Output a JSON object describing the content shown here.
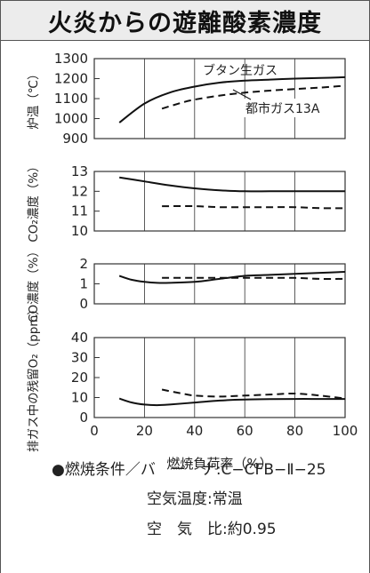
{
  "title": "火炎からの遊離酸素濃度",
  "xaxis": {
    "label": "燃焼負荷率（%）",
    "ticks": [
      0,
      20,
      40,
      60,
      80,
      100
    ],
    "range": [
      0,
      100
    ]
  },
  "chart_data": [
    {
      "type": "line",
      "ylabel": "炉温（℃）",
      "ylim": [
        900,
        1300
      ],
      "yticks": [
        900,
        1000,
        1100,
        1200,
        1300
      ],
      "annotations": [
        "ブタン生ガス",
        "都市ガス13A"
      ],
      "series": [
        {
          "name": "ブタン生ガス",
          "style": "solid",
          "x": [
            10,
            20,
            30,
            40,
            50,
            60,
            70,
            80,
            90,
            100
          ],
          "y": [
            980,
            1075,
            1130,
            1160,
            1180,
            1190,
            1195,
            1200,
            1203,
            1207
          ]
        },
        {
          "name": "都市ガス13A",
          "style": "dashed",
          "x": [
            27,
            35,
            40,
            50,
            60,
            70,
            80,
            90,
            100
          ],
          "y": [
            1050,
            1080,
            1095,
            1115,
            1130,
            1140,
            1148,
            1155,
            1165
          ]
        }
      ]
    },
    {
      "type": "line",
      "ylabel": "CO₂濃度（%）",
      "ylim": [
        10,
        13
      ],
      "yticks": [
        10,
        11,
        12,
        13
      ],
      "series": [
        {
          "name": "ブタン生ガス",
          "style": "solid",
          "x": [
            10,
            20,
            30,
            40,
            50,
            60,
            70,
            80,
            90,
            100
          ],
          "y": [
            12.7,
            12.5,
            12.3,
            12.15,
            12.05,
            12.0,
            12.0,
            12.0,
            12.0,
            12.0
          ]
        },
        {
          "name": "都市ガス13A",
          "style": "dashed",
          "x": [
            27,
            40,
            50,
            60,
            70,
            80,
            90,
            100
          ],
          "y": [
            11.25,
            11.25,
            11.2,
            11.2,
            11.2,
            11.2,
            11.15,
            11.15
          ]
        }
      ]
    },
    {
      "type": "line",
      "ylabel": "CO濃度（%）",
      "ylim": [
        0,
        2
      ],
      "yticks": [
        0,
        1,
        2
      ],
      "series": [
        {
          "name": "ブタン生ガス",
          "style": "solid",
          "x": [
            10,
            15,
            20,
            25,
            30,
            40,
            50,
            60,
            70,
            80,
            90,
            100
          ],
          "y": [
            1.4,
            1.2,
            1.1,
            1.05,
            1.05,
            1.1,
            1.25,
            1.4,
            1.45,
            1.5,
            1.55,
            1.6
          ]
        },
        {
          "name": "都市ガス13A",
          "style": "dashed",
          "x": [
            27,
            40,
            50,
            60,
            70,
            80,
            90,
            100
          ],
          "y": [
            1.3,
            1.3,
            1.3,
            1.3,
            1.3,
            1.3,
            1.25,
            1.25
          ]
        }
      ]
    },
    {
      "type": "line",
      "ylabel": "排ガス中の残留O₂（ppm）",
      "ylim": [
        0,
        40
      ],
      "yticks": [
        0,
        10,
        20,
        30,
        40
      ],
      "series": [
        {
          "name": "ブタン生ガス",
          "style": "solid",
          "x": [
            10,
            15,
            20,
            25,
            30,
            40,
            50,
            60,
            70,
            80,
            90,
            100
          ],
          "y": [
            9.5,
            7.5,
            6.5,
            6.2,
            6.5,
            7.5,
            8.5,
            9.0,
            9.2,
            9.3,
            9.3,
            9.3
          ]
        },
        {
          "name": "都市ガス13A",
          "style": "dashed",
          "x": [
            27,
            35,
            40,
            50,
            60,
            70,
            80,
            90,
            100
          ],
          "y": [
            14,
            12,
            11,
            10.5,
            11,
            11.5,
            12,
            11,
            9.5
          ]
        }
      ]
    }
  ],
  "notes": {
    "line1": "●燃焼条件／バ　ー　ナ:C−CFB−Ⅱ−25",
    "line2": "空気温度:常温",
    "line3": "空　気　比:約0.95"
  }
}
